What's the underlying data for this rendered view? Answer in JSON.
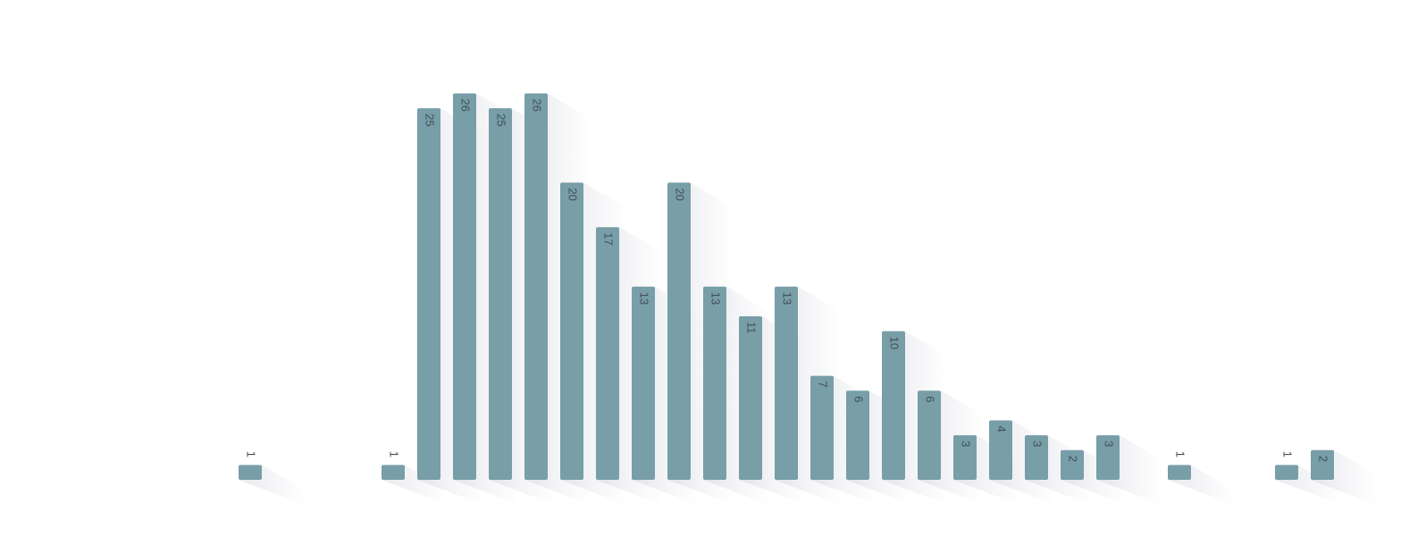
{
  "chart_data": {
    "type": "bar",
    "categories": [
      null,
      null,
      null,
      null,
      null,
      null,
      null,
      null,
      null,
      null,
      null,
      null,
      null,
      null,
      null,
      null,
      null,
      null,
      null,
      null,
      null,
      null,
      null,
      null,
      null,
      null,
      null,
      null,
      null,
      null,
      null
    ],
    "values": [
      1,
      null,
      null,
      null,
      1,
      25,
      26,
      25,
      26,
      20,
      17,
      13,
      20,
      13,
      11,
      13,
      7,
      6,
      10,
      6,
      3,
      4,
      3,
      2,
      3,
      null,
      1,
      null,
      null,
      1,
      2
    ],
    "color": "#789ea8",
    "ylim": [
      0,
      30
    ]
  }
}
